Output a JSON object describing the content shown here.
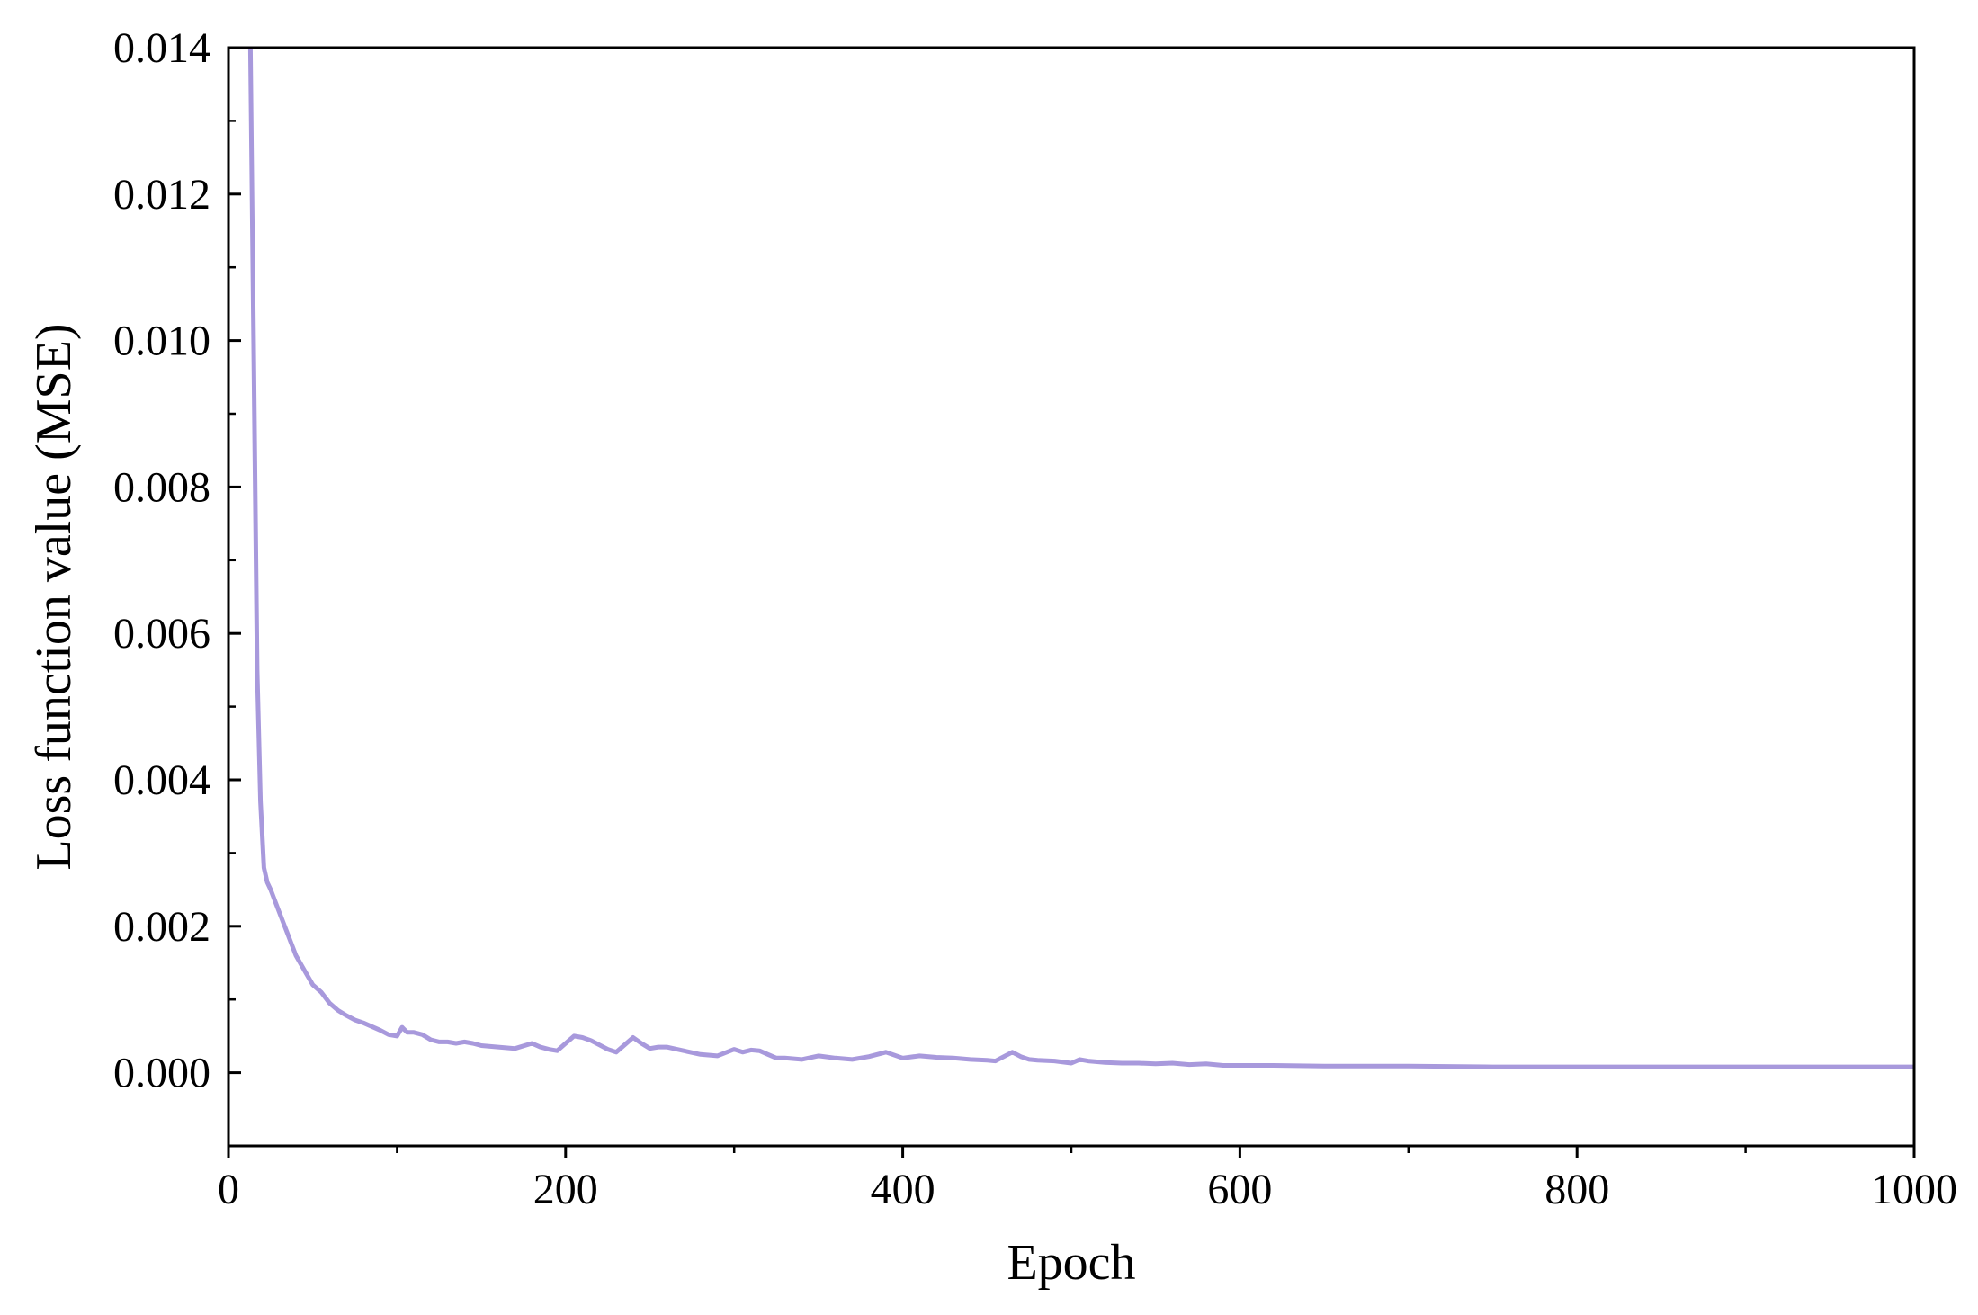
{
  "chart_data": {
    "type": "line",
    "title": "",
    "xlabel": "Epoch",
    "ylabel": "Loss function value (MSE)",
    "xlim": [
      0,
      1000
    ],
    "ylim": [
      -0.001,
      0.014
    ],
    "x_ticks": [
      0,
      200,
      400,
      600,
      800,
      1000
    ],
    "x_tick_labels": [
      "0",
      "200",
      "400",
      "600",
      "800",
      "1000"
    ],
    "y_ticks": [
      0.0,
      0.002,
      0.004,
      0.006,
      0.008,
      0.01,
      0.012,
      0.014
    ],
    "y_tick_labels": [
      "0.000",
      "0.002",
      "0.004",
      "0.006",
      "0.008",
      "0.010",
      "0.012",
      "0.014"
    ],
    "grid": false,
    "legend": "none",
    "line_color": "#a899dc",
    "series": [
      {
        "x": [
          13,
          15,
          17,
          19,
          21,
          23,
          25,
          30,
          35,
          40,
          45,
          50,
          55,
          60,
          65,
          70,
          75,
          80,
          85,
          90,
          95,
          100,
          103,
          106,
          110,
          115,
          120,
          125,
          130,
          135,
          140,
          145,
          150,
          160,
          170,
          180,
          185,
          190,
          195,
          200,
          205,
          210,
          215,
          220,
          225,
          230,
          235,
          240,
          245,
          250,
          255,
          260,
          270,
          280,
          290,
          300,
          305,
          310,
          315,
          320,
          325,
          330,
          340,
          350,
          360,
          370,
          380,
          390,
          400,
          410,
          420,
          430,
          440,
          450,
          455,
          460,
          465,
          470,
          475,
          480,
          490,
          500,
          505,
          510,
          520,
          530,
          540,
          550,
          560,
          570,
          580,
          590,
          600,
          620,
          650,
          700,
          750,
          800,
          850,
          900,
          950,
          1000
        ],
        "y": [
          0.014,
          0.0098,
          0.0055,
          0.0037,
          0.0028,
          0.0026,
          0.0025,
          0.0022,
          0.0019,
          0.0016,
          0.0014,
          0.0012,
          0.0011,
          0.00095,
          0.00085,
          0.00078,
          0.00072,
          0.00068,
          0.00063,
          0.00058,
          0.00052,
          0.0005,
          0.00062,
          0.00055,
          0.00055,
          0.00052,
          0.00045,
          0.00042,
          0.00042,
          0.0004,
          0.00042,
          0.0004,
          0.00037,
          0.00035,
          0.00033,
          0.0004,
          0.00035,
          0.00032,
          0.0003,
          0.0004,
          0.0005,
          0.00048,
          0.00044,
          0.00038,
          0.00032,
          0.00028,
          0.00038,
          0.00048,
          0.0004,
          0.00033,
          0.00035,
          0.00035,
          0.0003,
          0.00025,
          0.00023,
          0.00032,
          0.00028,
          0.00031,
          0.0003,
          0.00025,
          0.0002,
          0.0002,
          0.00018,
          0.00023,
          0.0002,
          0.00018,
          0.00022,
          0.00028,
          0.0002,
          0.00023,
          0.00021,
          0.0002,
          0.00018,
          0.00017,
          0.00016,
          0.00022,
          0.00028,
          0.00022,
          0.00018,
          0.00017,
          0.00016,
          0.00013,
          0.00018,
          0.00016,
          0.00014,
          0.00013,
          0.00013,
          0.00012,
          0.00013,
          0.00011,
          0.00012,
          0.0001,
          0.0001,
          0.0001,
          9e-05,
          9e-05,
          8e-05,
          8e-05,
          8e-05,
          8e-05,
          8e-05,
          8e-05
        ]
      }
    ]
  }
}
